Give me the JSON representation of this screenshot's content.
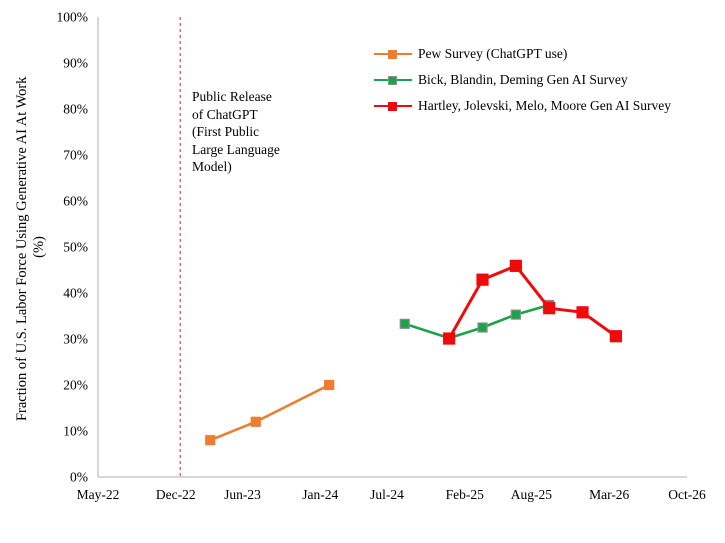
{
  "figure": {
    "background": "#FFFFFF",
    "text_color": "#000000",
    "axis_color": "#BFBFBF"
  },
  "chart_data": {
    "type": "line",
    "title": "",
    "xlabel": "",
    "ylabel_line1": "Fraction of U.S. Labor Force Using Generative AI At Work",
    "ylabel_line2": "(%)",
    "ylim": [
      0,
      100
    ],
    "grid": "off",
    "legend_position": "inside-top-right",
    "x_range_months": 53,
    "x_ticks": [
      {
        "month": 0,
        "label": "May-22"
      },
      {
        "month": 7,
        "label": "Dec-22"
      },
      {
        "month": 13,
        "label": "Jun-23"
      },
      {
        "month": 20,
        "label": "Jan-24"
      },
      {
        "month": 26,
        "label": "Jul-24"
      },
      {
        "month": 33,
        "label": "Feb-25"
      },
      {
        "month": 39,
        "label": "Aug-25"
      },
      {
        "month": 46,
        "label": "Mar-26"
      },
      {
        "month": 53,
        "label": "Oct-26"
      }
    ],
    "y_ticks": [
      {
        "value": 0,
        "label": "0%"
      },
      {
        "value": 10,
        "label": "10%"
      },
      {
        "value": 20,
        "label": "20%"
      },
      {
        "value": 30,
        "label": "30%"
      },
      {
        "value": 40,
        "label": "40%"
      },
      {
        "value": 50,
        "label": "50%"
      },
      {
        "value": 60,
        "label": "60%"
      },
      {
        "value": 70,
        "label": "70%"
      },
      {
        "value": 80,
        "label": "80%"
      },
      {
        "value": 90,
        "label": "90%"
      },
      {
        "value": 100,
        "label": "100%"
      }
    ],
    "reference_line": {
      "month": 7.4,
      "color": "#E03C3C",
      "style": "dashed"
    },
    "annotation": {
      "lines": [
        "Public Release",
        "of ChatGPT",
        "(First Public",
        "Large Language",
        "Model)"
      ]
    },
    "series": [
      {
        "name": "Pew Survey (ChatGPT use)",
        "color": "#ED7D31",
        "marker": "square",
        "marker_size": 9,
        "marker_border": "#ED7D31",
        "line_width": 2.6,
        "points": [
          {
            "date": "Mar-23",
            "month": 10.1,
            "value": 8
          },
          {
            "date": "Jul-23",
            "month": 14.2,
            "value": 12
          },
          {
            "date": "Feb-24",
            "month": 20.8,
            "value": 20
          }
        ]
      },
      {
        "name": "Bick, Blandin, Deming Gen AI Survey",
        "color": "#1AA449",
        "marker": "square",
        "marker_size": 9,
        "marker_border": "#8C8C8C",
        "line_width": 2.6,
        "points": [
          {
            "date": "Aug-24",
            "month": 27.6,
            "value": 33.3
          },
          {
            "date": "Dec-24",
            "month": 31.6,
            "value": 30.2
          },
          {
            "date": "Mar-25",
            "month": 34.6,
            "value": 32.5
          },
          {
            "date": "Jun-25",
            "month": 37.6,
            "value": 35.3
          },
          {
            "date": "Sep-25",
            "month": 40.6,
            "value": 37.4
          }
        ]
      },
      {
        "name": "Hartley, Jolevski, Melo, Moore Gen AI Survey",
        "color": "#EF0B0B",
        "marker": "square",
        "marker_size": 11,
        "marker_border": "#EF0B0B",
        "line_width": 3,
        "points": [
          {
            "date": "Dec-24",
            "month": 31.6,
            "value": 30.1
          },
          {
            "date": "Mar-25",
            "month": 34.6,
            "value": 42.9
          },
          {
            "date": "Jun-25",
            "month": 37.6,
            "value": 45.9
          },
          {
            "date": "Sep-25",
            "month": 40.6,
            "value": 36.7
          },
          {
            "date": "Dec-25",
            "month": 43.6,
            "value": 35.8
          },
          {
            "date": "Mar-26",
            "month": 46.6,
            "value": 30.6
          }
        ]
      }
    ]
  }
}
